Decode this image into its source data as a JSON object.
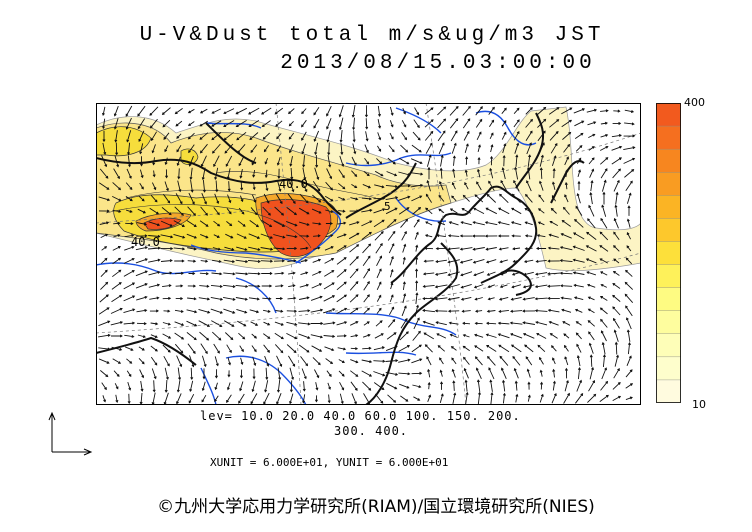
{
  "header": {
    "title": "U-V&Dust total m/s&ug/m3 JST",
    "datetime": "2013/08/15.03:00:00"
  },
  "colorbar": {
    "max_label": "400",
    "min_label": "10",
    "colors": [
      "#f25a1e",
      "#f56f1f",
      "#f7861f",
      "#f99c22",
      "#fbb424",
      "#fdc82c",
      "#fde03a",
      "#fef15a",
      "#fefb82",
      "#fefd9e",
      "#fefeb8",
      "#fefecc",
      "#fffbdf"
    ]
  },
  "map": {
    "contour_labels": [
      "40.0",
      "40.0",
      "5"
    ],
    "dust_colors": {
      "light": "#fcf4c4",
      "mid": "#fbe58a",
      "yellow": "#f6dd3c",
      "orange": "#f5a82a",
      "red": "#f0521e"
    }
  },
  "legend": {
    "lev_line1": "lev= 10.0 20.0 40.0 60.0 100. 150. 200.",
    "lev_line2": "300. 400."
  },
  "units": {
    "text": "XUNIT = 6.000E+01, YUNIT = 6.000E+01"
  },
  "credit": "©九州大学応用力学研究所(RIAM)/国立環境研究所(NIES)"
}
